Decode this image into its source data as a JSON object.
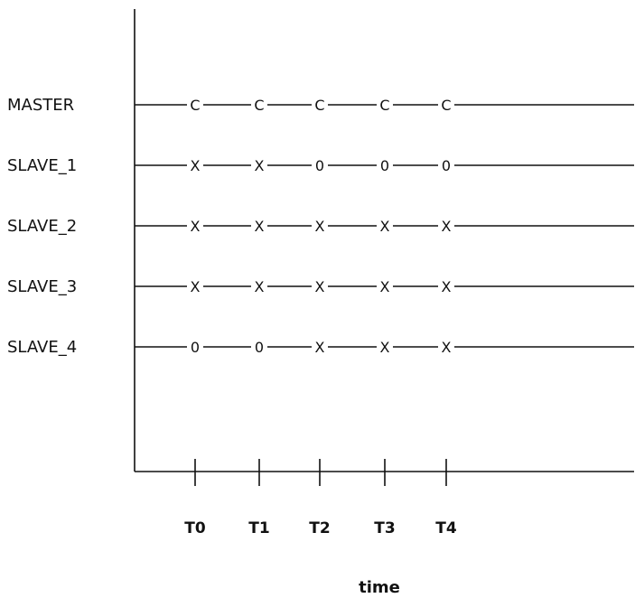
{
  "rows": [
    {
      "label": "MASTER",
      "states": [
        "C",
        "C",
        "C",
        "C",
        "C"
      ]
    },
    {
      "label": "SLAVE_1",
      "states": [
        "X",
        "X",
        "0",
        "0",
        "0"
      ]
    },
    {
      "label": "SLAVE_2",
      "states": [
        "X",
        "X",
        "X",
        "X",
        "X"
      ]
    },
    {
      "label": "SLAVE_3",
      "states": [
        "X",
        "X",
        "X",
        "X",
        "X"
      ]
    },
    {
      "label": "SLAVE_4",
      "states": [
        "0",
        "0",
        "X",
        "X",
        "X"
      ]
    }
  ],
  "time_ticks": [
    "T0",
    "T1",
    "T2",
    "T3",
    "T4"
  ],
  "axis_caption": "time"
}
